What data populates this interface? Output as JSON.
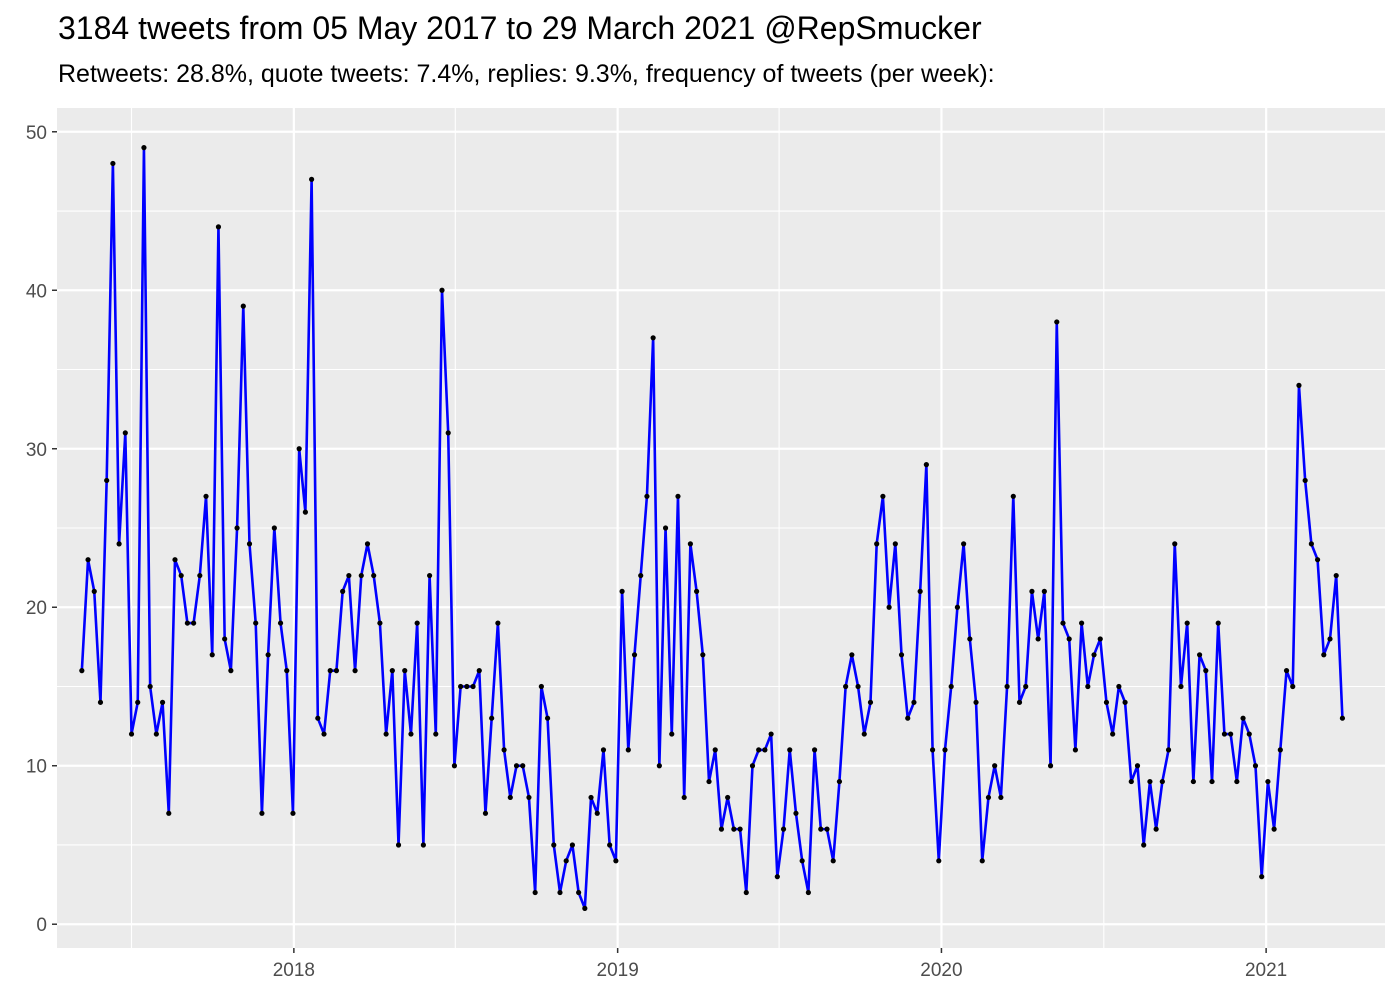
{
  "title": "3184 tweets from 05 May 2017 to 29 March 2021 @RepSmucker",
  "subtitle": "Retweets: 28.8%, quote tweets: 7.4%, replies: 9.3%, frequency of tweets (per week):",
  "chart_data": {
    "type": "line",
    "title": "3184 tweets from 05 May 2017 to 29 March 2021 @RepSmucker",
    "subtitle": "Retweets: 28.8%, quote tweets: 7.4%, replies: 9.3%, frequency of tweets (per week):",
    "xlabel": "",
    "ylabel": "",
    "x_start": "2017-05-07",
    "x_step_days": 7,
    "xlim": [
      "2017-04-09",
      "2021-05-15"
    ],
    "ylim": [
      -1.5,
      51.5
    ],
    "yticks": [
      0,
      10,
      20,
      30,
      40,
      50
    ],
    "xticks": [
      {
        "date": "2018-01-01",
        "label": "2018"
      },
      {
        "date": "2019-01-01",
        "label": "2019"
      },
      {
        "date": "2020-01-01",
        "label": "2020"
      },
      {
        "date": "2021-01-01",
        "label": "2021"
      }
    ],
    "x_minor_breaks": [
      "2017-07-02",
      "2018-07-02",
      "2019-07-02",
      "2020-07-02"
    ],
    "grid": true,
    "colors": {
      "line": "#0000ff",
      "point": "#000000",
      "panel": "#ebebeb",
      "grid": "#ffffff",
      "tick_text": "#4d4d4d"
    },
    "series": [
      {
        "values": [
          16,
          23,
          21,
          14,
          28,
          48,
          24,
          31,
          12,
          14,
          49,
          15,
          12,
          14,
          7,
          23,
          22,
          19,
          19,
          22,
          27,
          17,
          44,
          18,
          16,
          25,
          39,
          24,
          19,
          7,
          17,
          25,
          19,
          16,
          7,
          30,
          26,
          47,
          13,
          12,
          16,
          16,
          21,
          22,
          16,
          22,
          24,
          22,
          19,
          12,
          16,
          5,
          16,
          12,
          19,
          5,
          22,
          12,
          40,
          31,
          10,
          15,
          15,
          15,
          16,
          7,
          13,
          19,
          11,
          8,
          10,
          10,
          8,
          2,
          15,
          13,
          5,
          2,
          4,
          5,
          2,
          1,
          8,
          7,
          11,
          5,
          4,
          21,
          11,
          17,
          22,
          27,
          37,
          10,
          25,
          12,
          27,
          8,
          24,
          21,
          17,
          9,
          11,
          6,
          8,
          6,
          6,
          2,
          10,
          11,
          11,
          12,
          3,
          6,
          11,
          7,
          4,
          2,
          11,
          6,
          6,
          4,
          9,
          15,
          17,
          15,
          12,
          14,
          24,
          27,
          20,
          24,
          17,
          13,
          14,
          21,
          29,
          11,
          4,
          11,
          15,
          20,
          24,
          18,
          14,
          4,
          8,
          10,
          8,
          15,
          27,
          14,
          15,
          21,
          18,
          21,
          10,
          38,
          19,
          18,
          11,
          19,
          15,
          17,
          18,
          14,
          12,
          15,
          14,
          9,
          10,
          5,
          9,
          6,
          9,
          11,
          24,
          15,
          19,
          9,
          17,
          16,
          9,
          19,
          12,
          12,
          9,
          13,
          12,
          10,
          3,
          9,
          6,
          11,
          16,
          15,
          34,
          28,
          24,
          23,
          17,
          18,
          22,
          13
        ]
      }
    ]
  }
}
